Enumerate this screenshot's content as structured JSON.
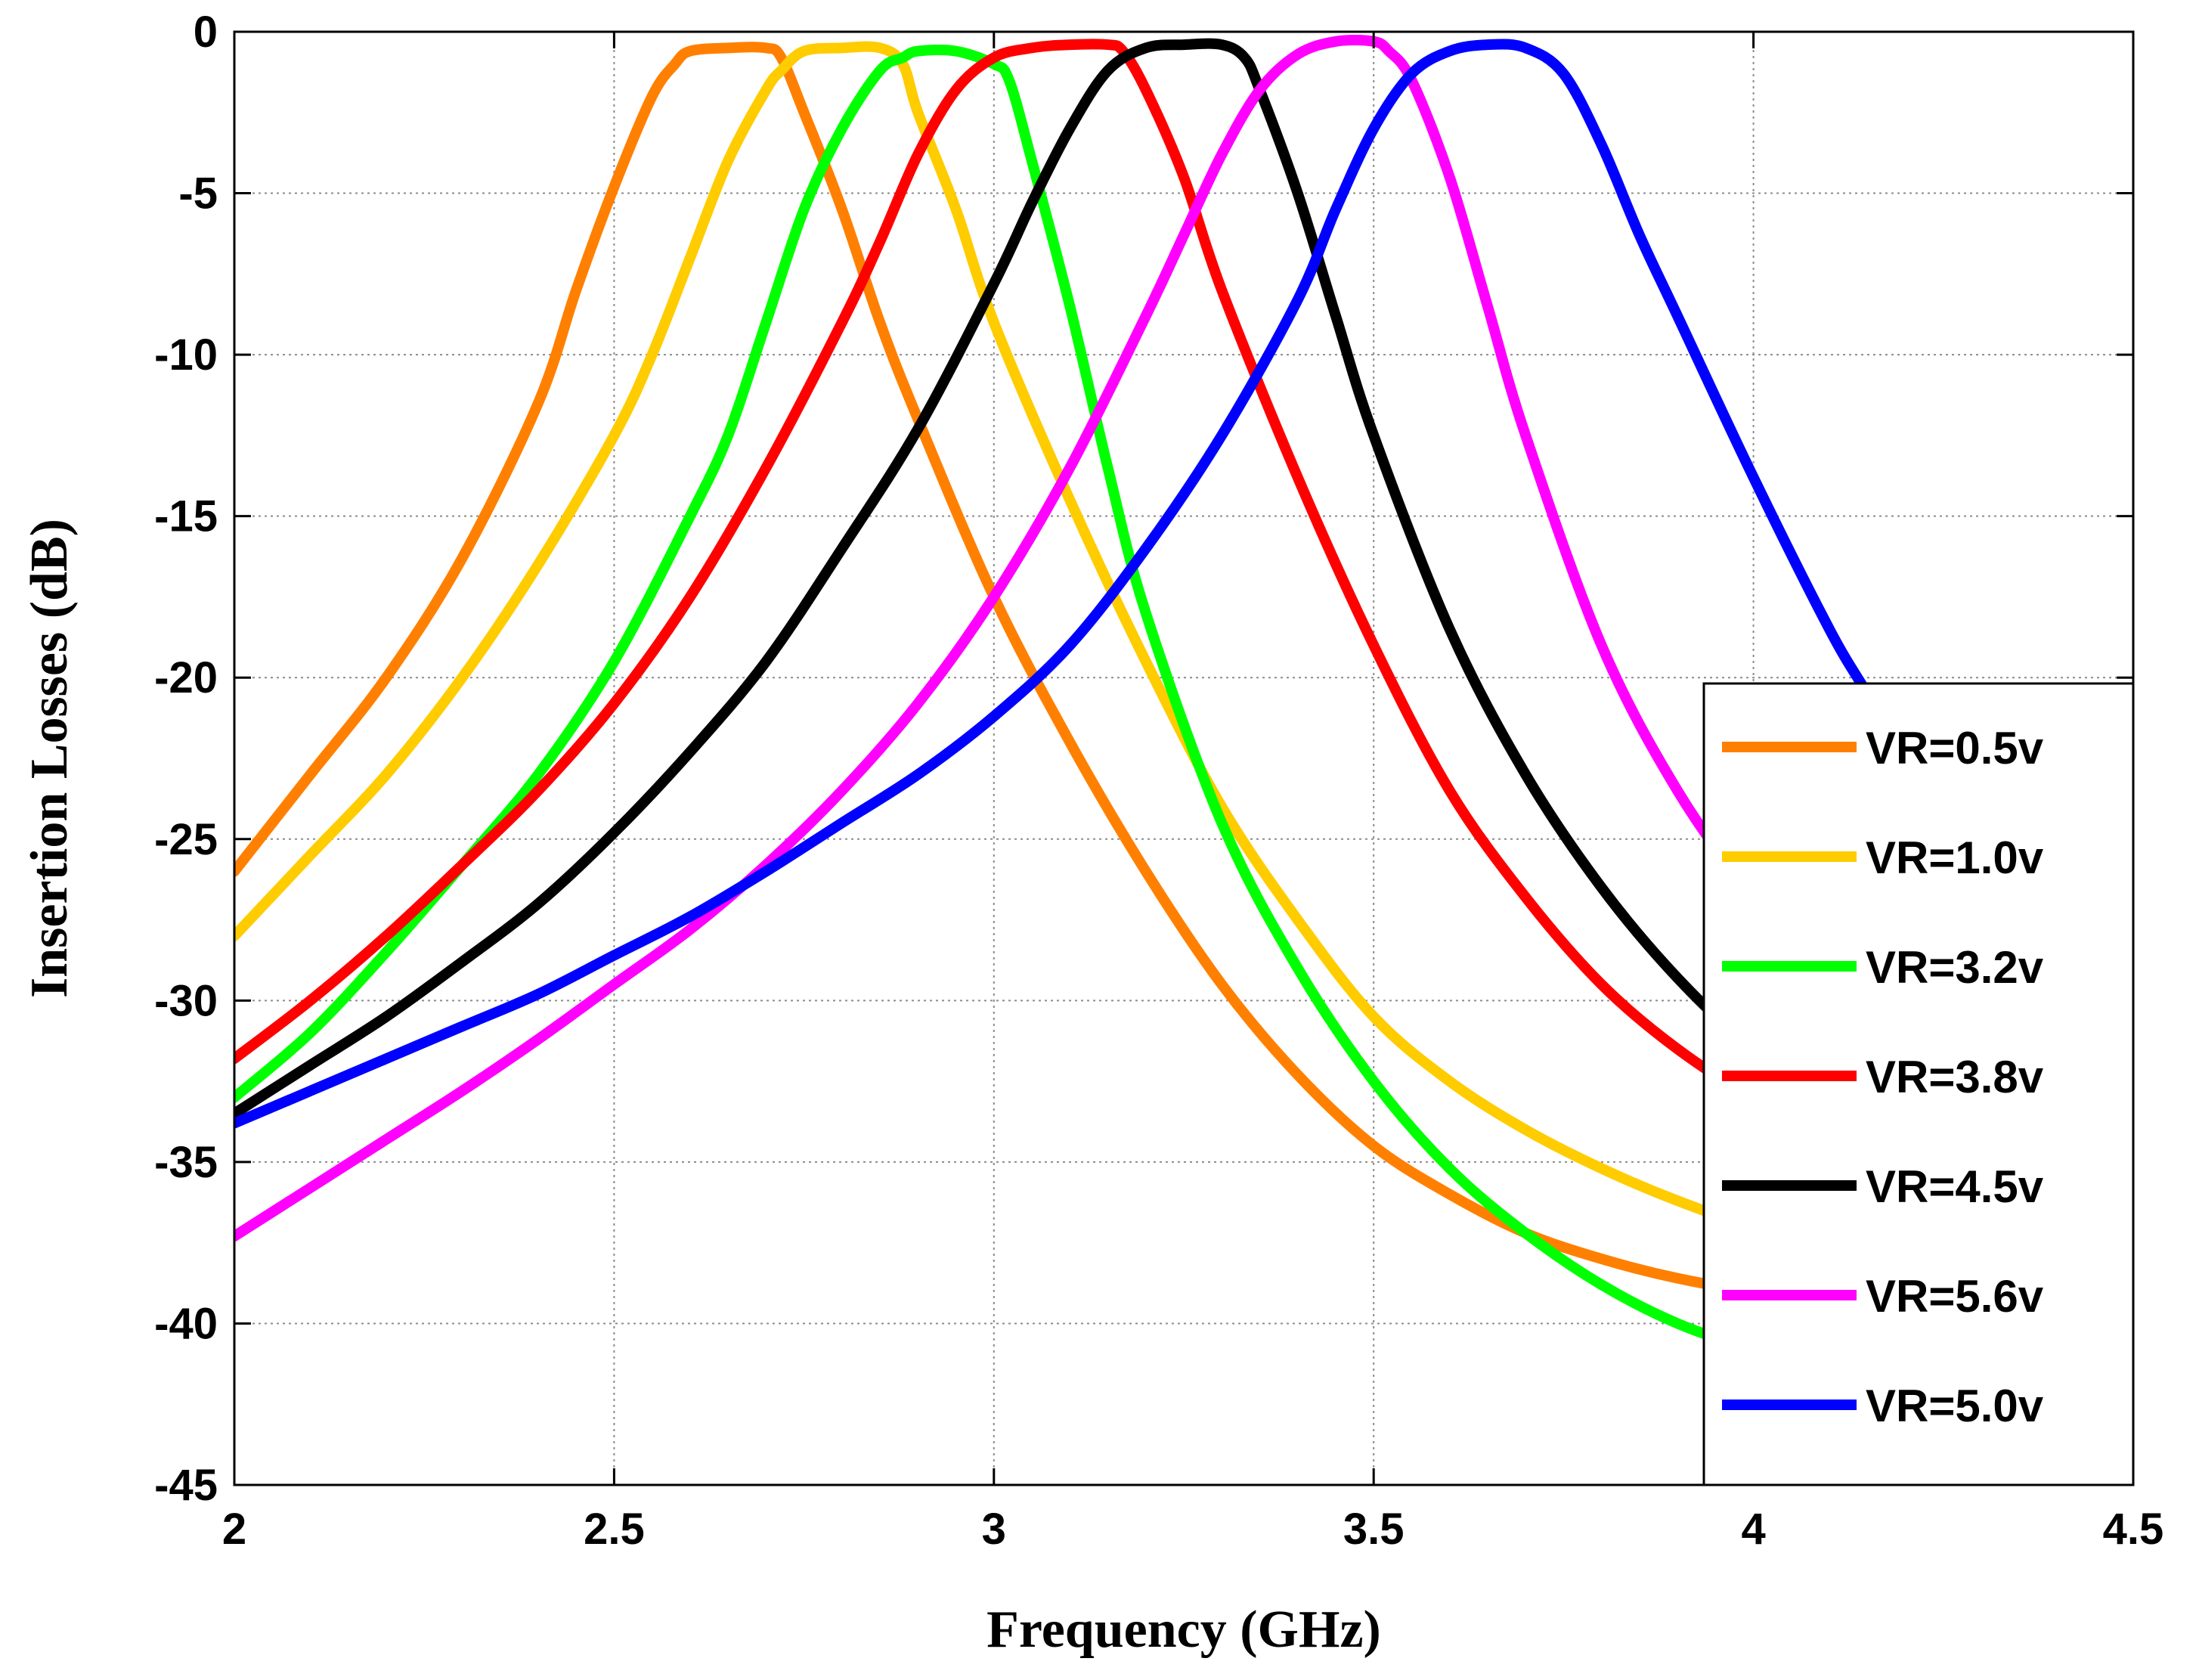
{
  "chart_data": {
    "type": "line",
    "title": "",
    "xlabel": "Frequency (GHz)",
    "ylabel": "Insertion Losses (dB)",
    "xlim": [
      2,
      4.5
    ],
    "ylim": [
      -45,
      0
    ],
    "xticks": [
      2,
      2.5,
      3,
      3.5,
      4,
      4.5
    ],
    "xtick_labels": [
      "2",
      "2.5",
      "3",
      "3.5",
      "4",
      "4.5"
    ],
    "yticks": [
      0,
      -5,
      -10,
      -15,
      -20,
      -25,
      -30,
      -35,
      -40,
      -45
    ],
    "ytick_labels": [
      "0",
      "-5",
      "-10",
      "-15",
      "-20",
      "-25",
      "-30",
      "-35",
      "-40",
      "-45"
    ],
    "grid": true,
    "legend_position": "bottom-right",
    "series": [
      {
        "name": "VR=0.5v",
        "color": "#ff8000",
        "x": [
          2.0,
          2.1,
          2.2,
          2.3,
          2.4,
          2.45,
          2.5,
          2.55,
          2.58,
          2.6,
          2.65,
          2.7,
          2.72,
          2.75,
          2.8,
          2.85,
          2.9,
          3.0,
          3.1,
          3.2,
          3.3,
          3.4,
          3.5,
          3.6,
          3.7,
          3.8,
          3.9,
          4.0,
          4.1,
          4.2,
          4.3,
          4.4,
          4.5
        ],
        "y": [
          -26.0,
          -23.0,
          -20.0,
          -16.3,
          -11.5,
          -8.0,
          -4.8,
          -2.0,
          -1.0,
          -0.6,
          -0.5,
          -0.5,
          -0.8,
          -2.5,
          -5.5,
          -9.0,
          -12.0,
          -17.5,
          -22.0,
          -26.0,
          -29.5,
          -32.3,
          -34.5,
          -36.0,
          -37.2,
          -38.0,
          -38.6,
          -39.0,
          -39.2,
          -39.3,
          -39.3,
          -39.3,
          -39.3
        ]
      },
      {
        "name": "VR=1.0v",
        "color": "#ffcc00",
        "x": [
          2.0,
          2.1,
          2.2,
          2.3,
          2.4,
          2.5,
          2.55,
          2.6,
          2.65,
          2.7,
          2.72,
          2.75,
          2.8,
          2.85,
          2.88,
          2.9,
          2.95,
          3.0,
          3.1,
          3.2,
          3.3,
          3.4,
          3.5,
          3.6,
          3.7,
          3.8,
          3.9,
          4.0,
          4.1,
          4.2,
          4.3,
          4.4,
          4.5
        ],
        "y": [
          -28.0,
          -25.5,
          -23.0,
          -20.0,
          -16.5,
          -12.5,
          -10.0,
          -7.0,
          -4.0,
          -1.8,
          -1.2,
          -0.6,
          -0.5,
          -0.5,
          -1.0,
          -2.5,
          -5.5,
          -9.0,
          -14.5,
          -19.5,
          -24.0,
          -27.5,
          -30.5,
          -32.5,
          -34.0,
          -35.2,
          -36.2,
          -37.0,
          -37.5,
          -37.8,
          -38.0,
          -38.1,
          -38.1
        ]
      },
      {
        "name": "VR=3.2v",
        "color": "#00ff00",
        "x": [
          2.0,
          2.1,
          2.2,
          2.3,
          2.4,
          2.5,
          2.6,
          2.65,
          2.7,
          2.75,
          2.8,
          2.85,
          2.88,
          2.9,
          2.95,
          3.0,
          3.02,
          3.05,
          3.1,
          3.15,
          3.2,
          3.3,
          3.4,
          3.5,
          3.6,
          3.7,
          3.8,
          3.9,
          4.0,
          4.1,
          4.2,
          4.3,
          4.4,
          4.5
        ],
        "y": [
          -33.0,
          -31.0,
          -28.5,
          -25.8,
          -23.0,
          -19.5,
          -15.0,
          -12.5,
          -9.0,
          -5.5,
          -3.0,
          -1.2,
          -0.8,
          -0.6,
          -0.6,
          -1.0,
          -1.5,
          -4.0,
          -8.5,
          -13.5,
          -18.0,
          -24.5,
          -29.0,
          -32.5,
          -35.2,
          -37.2,
          -38.8,
          -40.0,
          -40.8,
          -41.4,
          -41.8,
          -42.1,
          -42.3,
          -42.5
        ]
      },
      {
        "name": "VR=3.8v",
        "color": "#ff0000",
        "x": [
          2.0,
          2.1,
          2.2,
          2.3,
          2.4,
          2.5,
          2.6,
          2.7,
          2.8,
          2.85,
          2.9,
          2.95,
          3.0,
          3.05,
          3.1,
          3.15,
          3.17,
          3.2,
          3.25,
          3.3,
          3.4,
          3.5,
          3.6,
          3.7,
          3.8,
          3.9,
          4.0,
          4.1,
          4.2,
          4.3,
          4.4,
          4.5
        ],
        "y": [
          -31.8,
          -30.0,
          -28.0,
          -25.8,
          -23.5,
          -20.8,
          -17.5,
          -13.5,
          -9.0,
          -6.5,
          -3.8,
          -1.8,
          -0.8,
          -0.5,
          -0.4,
          -0.4,
          -0.6,
          -1.8,
          -4.5,
          -8.0,
          -13.8,
          -19.0,
          -23.5,
          -26.8,
          -29.5,
          -31.5,
          -33.0,
          -34.0,
          -34.8,
          -35.3,
          -35.6,
          -35.8
        ]
      },
      {
        "name": "VR=4.5v",
        "color": "#000000",
        "x": [
          2.0,
          2.1,
          2.2,
          2.3,
          2.4,
          2.5,
          2.6,
          2.7,
          2.8,
          2.9,
          3.0,
          3.05,
          3.1,
          3.15,
          3.2,
          3.25,
          3.3,
          3.33,
          3.35,
          3.4,
          3.45,
          3.5,
          3.6,
          3.7,
          3.8,
          3.9,
          4.0,
          4.1,
          4.2,
          4.3,
          4.4,
          4.5
        ],
        "y": [
          -33.5,
          -32.0,
          -30.5,
          -28.8,
          -27.0,
          -24.8,
          -22.3,
          -19.5,
          -16.0,
          -12.3,
          -7.8,
          -5.3,
          -3.0,
          -1.2,
          -0.5,
          -0.4,
          -0.4,
          -0.8,
          -1.8,
          -5.0,
          -8.8,
          -12.5,
          -18.5,
          -23.0,
          -26.5,
          -29.3,
          -31.5,
          -33.0,
          -34.0,
          -34.6,
          -35.0,
          -35.2
        ]
      },
      {
        "name": "VR=5.6v",
        "color": "#ff00ff",
        "x": [
          2.0,
          2.1,
          2.2,
          2.3,
          2.4,
          2.5,
          2.6,
          2.7,
          2.8,
          2.9,
          3.0,
          3.1,
          3.2,
          3.25,
          3.3,
          3.35,
          3.4,
          3.45,
          3.5,
          3.52,
          3.55,
          3.6,
          3.65,
          3.7,
          3.8,
          3.9,
          4.0,
          4.1,
          4.2,
          4.3,
          4.4,
          4.5
        ],
        "y": [
          -37.3,
          -35.8,
          -34.3,
          -32.8,
          -31.2,
          -29.5,
          -27.8,
          -25.8,
          -23.5,
          -20.8,
          -17.5,
          -13.5,
          -8.8,
          -6.3,
          -3.8,
          -1.8,
          -0.7,
          -0.3,
          -0.3,
          -0.6,
          -1.5,
          -4.5,
          -8.5,
          -12.5,
          -19.0,
          -23.5,
          -26.8,
          -29.5,
          -31.5,
          -33.0,
          -34.3,
          -35.3
        ]
      },
      {
        "name": "VR=5.0v",
        "color": "#0000ff",
        "x": [
          2.0,
          2.1,
          2.2,
          2.3,
          2.4,
          2.5,
          2.6,
          2.7,
          2.8,
          2.9,
          3.0,
          3.1,
          3.2,
          3.3,
          3.4,
          3.45,
          3.5,
          3.55,
          3.6,
          3.65,
          3.7,
          3.75,
          3.8,
          3.85,
          3.9,
          4.0,
          4.1,
          4.15,
          4.2,
          4.3,
          4.4,
          4.5
        ],
        "y": [
          -33.8,
          -32.8,
          -31.8,
          -30.8,
          -29.8,
          -28.6,
          -27.4,
          -26.0,
          -24.5,
          -23.0,
          -21.2,
          -19.0,
          -16.0,
          -12.5,
          -8.3,
          -5.5,
          -3.0,
          -1.3,
          -0.6,
          -0.4,
          -0.5,
          -1.3,
          -3.5,
          -6.3,
          -8.8,
          -13.8,
          -18.5,
          -20.5,
          -22.5,
          -25.5,
          -27.7,
          -28.7
        ]
      }
    ]
  }
}
